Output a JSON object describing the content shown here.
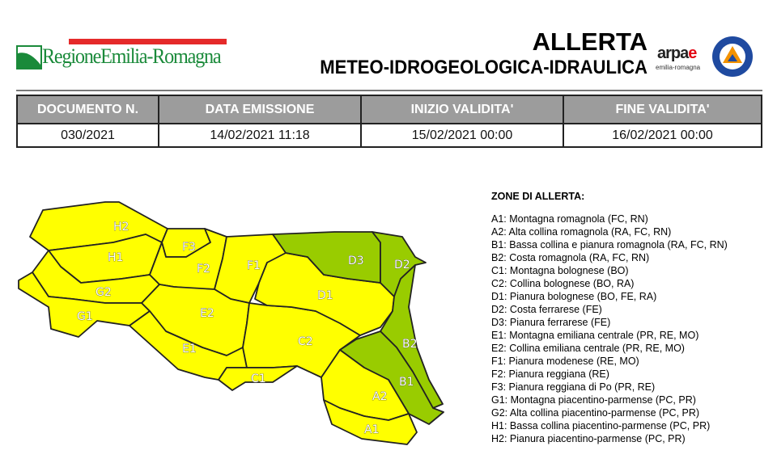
{
  "header": {
    "brand": "RegioneEmilia-Romagna",
    "title": "ALLERTA",
    "subtitle": "METEO-IDROGEOLOGICA-IDRAULICA",
    "arpae_logo": "arpae",
    "arpae_sub": "emilia-romagna",
    "pc_logo": "Protezione Civile Regione Emilia-Romagna"
  },
  "table": {
    "headers": [
      "DOCUMENTO N.",
      "DATA EMISSIONE",
      "INIZIO VALIDITA'",
      "FINE VALIDITA'"
    ],
    "values": [
      "030/2021",
      "14/02/2021 11:18",
      "15/02/2021 00:00",
      "16/02/2021 00:00"
    ]
  },
  "colors": {
    "yellow": "#ffff00",
    "green": "#99cc00",
    "header_gray": "#9c9c9c"
  },
  "map": {
    "zones": [
      {
        "id": "H2",
        "level": "yellow"
      },
      {
        "id": "H1",
        "level": "yellow"
      },
      {
        "id": "G2",
        "level": "yellow"
      },
      {
        "id": "G1",
        "level": "yellow"
      },
      {
        "id": "F3",
        "level": "yellow"
      },
      {
        "id": "F2",
        "level": "yellow"
      },
      {
        "id": "F1",
        "level": "yellow"
      },
      {
        "id": "E2",
        "level": "yellow"
      },
      {
        "id": "E1",
        "level": "yellow"
      },
      {
        "id": "C2",
        "level": "yellow"
      },
      {
        "id": "C1",
        "level": "yellow"
      },
      {
        "id": "D1",
        "level": "yellow"
      },
      {
        "id": "D3",
        "level": "green"
      },
      {
        "id": "D2",
        "level": "green"
      },
      {
        "id": "B2",
        "level": "green"
      },
      {
        "id": "B1",
        "level": "green"
      },
      {
        "id": "A2",
        "level": "yellow"
      },
      {
        "id": "A1",
        "level": "yellow"
      }
    ]
  },
  "legend": {
    "title": "ZONE DI ALLERTA:",
    "items": [
      "A1: Montagna romagnola (FC, RN)",
      "A2: Alta collina romagnola (RA, FC, RN)",
      "B1: Bassa collina e pianura romagnola (RA, FC, RN)",
      "B2: Costa romagnola (RA, FC, RN)",
      "C1: Montagna bolognese (BO)",
      "C2: Collina bolognese (BO, RA)",
      "D1: Pianura bolognese (BO, FE, RA)",
      "D2: Costa ferrarese (FE)",
      "D3: Pianura ferrarese (FE)",
      "E1: Montagna emiliana centrale (PR, RE, MO)",
      "E2: Collina emiliana centrale (PR, RE, MO)",
      "F1: Pianura modenese (RE, MO)",
      "F2: Pianura reggiana (RE)",
      "F3: Pianura reggiana di Po (PR, RE)",
      "G1: Montagna piacentino-parmense (PC, PR)",
      "G2: Alta collina piacentino-parmense (PC, PR)",
      "H1: Bassa collina piacentino-parmense (PC, PR)",
      "H2: Pianura piacentino-parmense (PC, PR)"
    ]
  }
}
